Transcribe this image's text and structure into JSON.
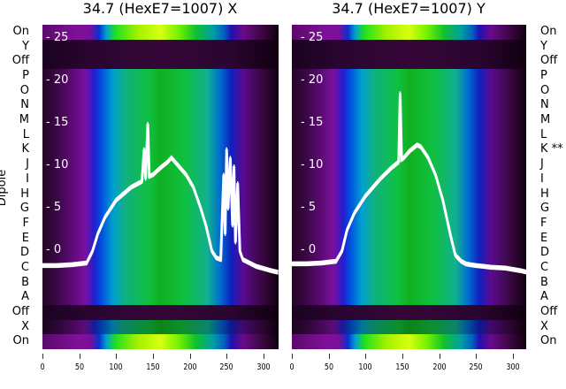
{
  "chart_data": [
    {
      "type": "heatmap",
      "title": "34.7 (HexE7=1007) X",
      "ylabel": "Dipole",
      "row_labels": [
        "On",
        "Y",
        "Off",
        "P",
        "O",
        "N",
        "M",
        "L",
        "K",
        "J",
        "I",
        "H",
        "G",
        "F",
        "E",
        "D",
        "C",
        "B",
        "A",
        "Off",
        "X",
        "On"
      ],
      "xticks": [
        "0",
        "50",
        "100",
        "150",
        "200",
        "250",
        "300"
      ],
      "yticks": [
        "0",
        "5",
        "10",
        "15",
        "20",
        "25"
      ],
      "xlim": [
        0,
        320
      ],
      "ylim": [
        -11.5,
        26.7
      ],
      "profile": {
        "x": [
          0,
          20,
          40,
          60,
          68,
          75,
          85,
          100,
          120,
          135,
          138,
          140,
          143,
          145,
          150,
          160,
          170,
          175,
          185,
          195,
          205,
          215,
          222,
          230,
          236,
          242,
          246,
          248,
          250,
          252,
          255,
          258,
          260,
          262,
          265,
          268,
          272,
          290,
          310,
          320
        ],
        "y": [
          -1.7,
          -1.7,
          -1.6,
          -1.4,
          0,
          2,
          4,
          6,
          7.5,
          8.2,
          12,
          8.5,
          15,
          8.8,
          9,
          9.8,
          10.5,
          11,
          10,
          9,
          7.5,
          5,
          3,
          0,
          -0.8,
          -1,
          9,
          2,
          12,
          5,
          11,
          3,
          10,
          1,
          8,
          0,
          -1,
          -1.8,
          -2.3,
          -2.5
        ]
      }
    },
    {
      "type": "heatmap",
      "title": "34.7 (HexE7=1007) Y",
      "row_labels": [
        "On",
        "Y",
        "Off",
        "P",
        "O",
        "N",
        "M",
        "L",
        "K **",
        "J",
        "I",
        "H",
        "G",
        "F",
        "E",
        "D",
        "C",
        "B",
        "A",
        "Off",
        "X",
        "On"
      ],
      "xticks": [
        "0",
        "50",
        "100",
        "150",
        "200",
        "250",
        "300"
      ],
      "yticks": [
        "0",
        "5",
        "10",
        "15",
        "20",
        "25"
      ],
      "xlim": [
        0,
        320
      ],
      "ylim": [
        -11.5,
        26.7
      ],
      "profile": {
        "x": [
          0,
          20,
          40,
          60,
          68,
          75,
          85,
          100,
          120,
          135,
          145,
          147,
          149,
          152,
          160,
          170,
          175,
          185,
          195,
          205,
          215,
          222,
          230,
          236,
          242,
          250,
          260,
          270,
          290,
          310,
          320
        ],
        "y": [
          -1.5,
          -1.5,
          -1.4,
          -1.2,
          0,
          2.5,
          4.5,
          6.5,
          8.5,
          9.8,
          10.5,
          18.6,
          10.8,
          11,
          11.8,
          12.5,
          12.3,
          11,
          9,
          6,
          2,
          -0.5,
          -1.2,
          -1.5,
          -1.6,
          -1.7,
          -1.8,
          -1.9,
          -2,
          -2.3,
          -2.5
        ]
      }
    }
  ]
}
